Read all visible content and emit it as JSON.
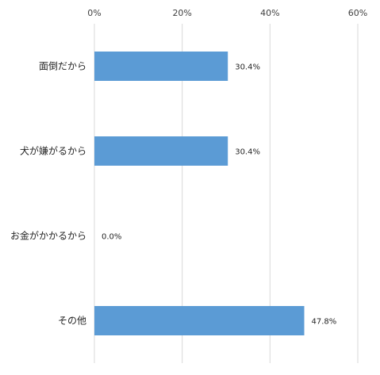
{
  "chart_data": {
    "type": "bar",
    "orientation": "horizontal",
    "categories": [
      "面倒だから",
      "犬が嫌がるから",
      "お金がかかるから",
      "その他"
    ],
    "values": [
      30.4,
      30.4,
      0.0,
      47.8
    ],
    "data_labels": [
      "30.4%",
      "30.4%",
      "0.0%",
      "47.8%"
    ],
    "x_ticks": [
      "0%",
      "20%",
      "40%",
      "60%"
    ],
    "xlim": [
      0,
      60
    ],
    "x_axis_position": "top",
    "grid": true,
    "title": "",
    "xlabel": "",
    "ylabel": "",
    "colors": {
      "bar": "#5B9BD5",
      "grid": "#D9D9D9"
    }
  }
}
